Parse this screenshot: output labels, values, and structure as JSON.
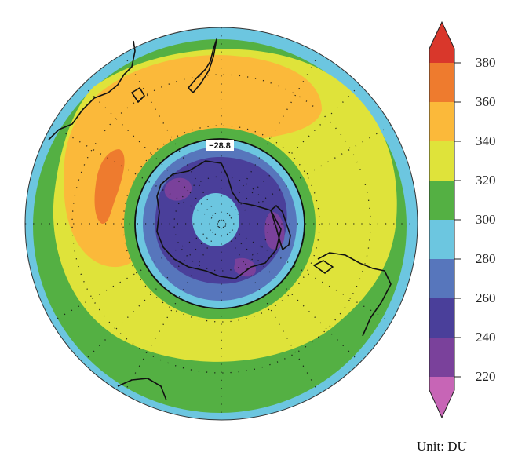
{
  "map": {
    "projection": "south-polar-stereographic",
    "contour_label": "−28.8"
  },
  "colorbar": {
    "levels": [
      "380",
      "360",
      "340",
      "320",
      "300",
      "280",
      "260",
      "240",
      "220"
    ],
    "colors": [
      "#d9372b",
      "#ee7b2e",
      "#fbb93a",
      "#dfe33a",
      "#54b043",
      "#6cc6e0",
      "#5776bc",
      "#4a3f9a",
      "#7a419b",
      "#c765b6"
    ],
    "unit_label": "Unit: DU"
  }
}
